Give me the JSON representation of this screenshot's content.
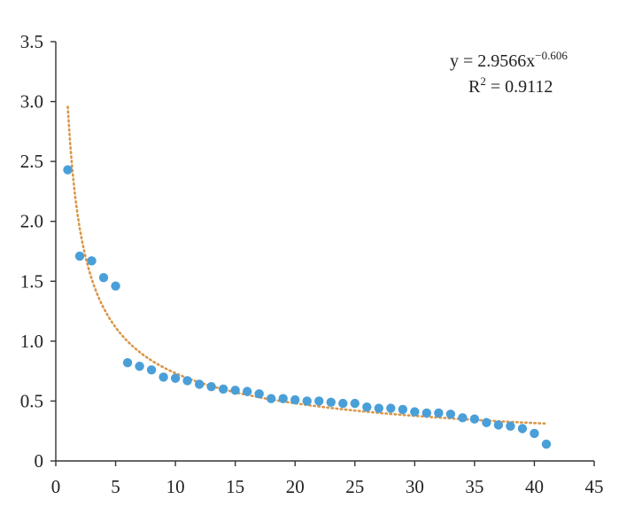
{
  "chart_data": {
    "type": "scatter",
    "title": "",
    "xlabel": "",
    "ylabel": "",
    "xlim": [
      0,
      45
    ],
    "ylim": [
      0,
      3.5
    ],
    "x_ticks": [
      0,
      5,
      10,
      15,
      20,
      25,
      30,
      35,
      40,
      45
    ],
    "x_tick_labels": [
      "0",
      "5",
      "10",
      "15",
      "20",
      "25",
      "30",
      "35",
      "40",
      "45"
    ],
    "y_ticks": [
      0,
      0.5,
      1.0,
      1.5,
      2.0,
      2.5,
      3.0,
      3.5
    ],
    "y_tick_labels": [
      "0",
      "0.5",
      "1.0",
      "1.5",
      "2.0",
      "2.5",
      "3.0",
      "3.5"
    ],
    "grid": false,
    "legend": "none",
    "series": [
      {
        "color": "#4a9fd8",
        "x": [
          1,
          2,
          3,
          4,
          5,
          6,
          7,
          8,
          9,
          10,
          11,
          12,
          13,
          14,
          15,
          16,
          17,
          18,
          19,
          20,
          21,
          22,
          23,
          24,
          25,
          26,
          27,
          28,
          29,
          30,
          31,
          32,
          33,
          34,
          35,
          36,
          37,
          38,
          39,
          40,
          41
        ],
        "y": [
          2.43,
          1.71,
          1.67,
          1.53,
          1.46,
          0.82,
          0.79,
          0.76,
          0.7,
          0.69,
          0.67,
          0.64,
          0.62,
          0.6,
          0.59,
          0.58,
          0.56,
          0.52,
          0.52,
          0.51,
          0.5,
          0.5,
          0.49,
          0.48,
          0.48,
          0.45,
          0.44,
          0.44,
          0.43,
          0.41,
          0.4,
          0.4,
          0.39,
          0.36,
          0.35,
          0.32,
          0.3,
          0.29,
          0.27,
          0.23,
          0.14
        ]
      }
    ],
    "trendline": {
      "type": "power",
      "coefficient": 2.9566,
      "exponent": -0.606,
      "x_range": [
        1,
        41
      ],
      "color": "#d9974a",
      "style": "dotted",
      "equation_prefix": "y = 2.9566x",
      "equation_exponent": "−0.606",
      "r2_prefix": "R",
      "r2_exponent": "2",
      "r2_suffix": " = 0.9112"
    }
  }
}
